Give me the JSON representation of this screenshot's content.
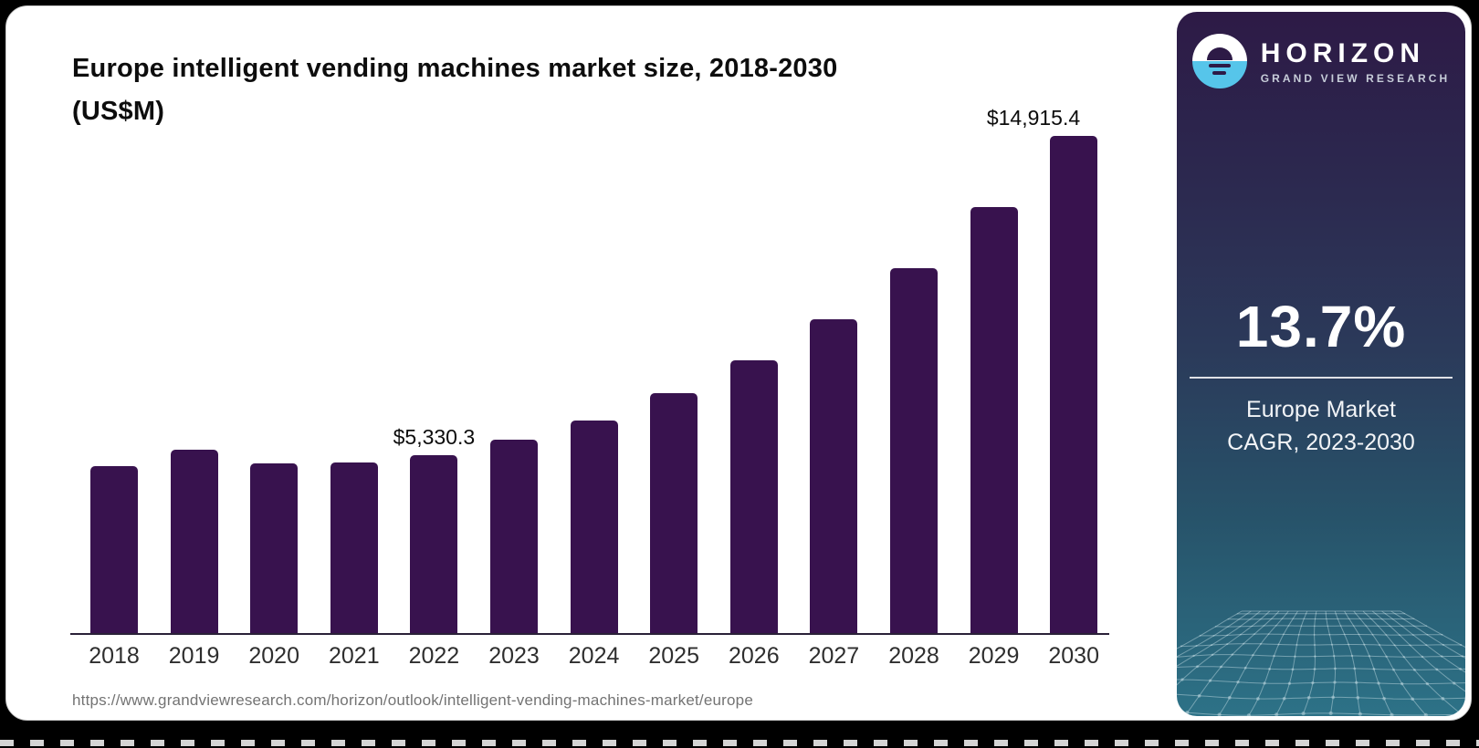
{
  "card": {
    "title_line1": "Europe intelligent vending machines market size, 2018-2030",
    "title_line2": "(US$M)",
    "source_url": "https://www.grandviewresearch.com/horizon/outlook/intelligent-vending-machines-market/europe"
  },
  "chart_data": {
    "type": "bar",
    "title": "Europe intelligent vending machines market size, 2018-2030 (US$M)",
    "unit": "US$M",
    "categories": [
      "2018",
      "2019",
      "2020",
      "2021",
      "2022",
      "2023",
      "2024",
      "2025",
      "2026",
      "2027",
      "2028",
      "2029",
      "2030"
    ],
    "values": [
      5000,
      5500,
      5090,
      5115,
      5330.3,
      5805,
      6380,
      7205,
      8195,
      9405,
      10945,
      12790,
      14915.4
    ],
    "data_labels": {
      "2022": "$5,330.3",
      "2030": "$14,915.4"
    },
    "bar_color": "#38124e",
    "xlabel": "",
    "ylabel": "",
    "ylim": [
      0,
      16000
    ],
    "grid": false,
    "legend": false
  },
  "panel": {
    "logo_text": "HORIZON",
    "logo_subtext": "GRAND VIEW RESEARCH",
    "stat_value": "13.7%",
    "stat_label_line1": "Europe Market",
    "stat_label_line2": "CAGR, 2023-2030",
    "colors": {
      "panel_top": "#2d1a46",
      "panel_bottom": "#2d7287",
      "logo_blue": "#56c5ea",
      "bar": "#38124e"
    }
  }
}
